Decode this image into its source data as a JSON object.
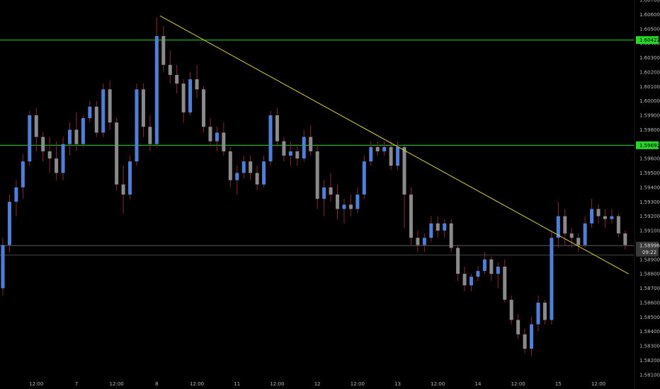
{
  "chart_data": {
    "type": "candlestick",
    "y_axis_side": "right",
    "ylim": [
      1.5805,
      1.607
    ],
    "grid": false,
    "colors": {
      "background": "#000000",
      "up": "#4f7fd9",
      "down": "#8a8a8a",
      "wick": "#8b2a2a",
      "horizontal_line": "#27d627",
      "trendline": "#d8d042",
      "price_line": "#5a5a5a",
      "axis_text": "#b7b7b7"
    },
    "y_ticks": [
      {
        "value": 1.607,
        "label": "1.60700"
      },
      {
        "value": 1.606,
        "label": "1.60600"
      },
      {
        "value": 1.605,
        "label": "1.60500"
      },
      {
        "value": 1.604,
        "label": "1.60400"
      },
      {
        "value": 1.603,
        "label": "1.60300"
      },
      {
        "value": 1.602,
        "label": "1.60200"
      },
      {
        "value": 1.601,
        "label": "1.60100"
      },
      {
        "value": 1.6,
        "label": "1.60000"
      },
      {
        "value": 1.599,
        "label": "1.59900"
      },
      {
        "value": 1.598,
        "label": "1.59800"
      },
      {
        "value": 1.597,
        "label": "1.59700"
      },
      {
        "value": 1.596,
        "label": "1.59600"
      },
      {
        "value": 1.595,
        "label": "1.59500"
      },
      {
        "value": 1.594,
        "label": "1.59400"
      },
      {
        "value": 1.593,
        "label": "1.59300"
      },
      {
        "value": 1.592,
        "label": "1.59200"
      },
      {
        "value": 1.591,
        "label": "1.59100"
      },
      {
        "value": 1.589,
        "label": "1.58900"
      },
      {
        "value": 1.588,
        "label": "1.58800"
      },
      {
        "value": 1.587,
        "label": "1.58700"
      },
      {
        "value": 1.586,
        "label": "1.58600"
      },
      {
        "value": 1.585,
        "label": "1.58500"
      },
      {
        "value": 1.584,
        "label": "1.58400"
      },
      {
        "value": 1.583,
        "label": "1.58300"
      },
      {
        "value": 1.582,
        "label": "1.58200"
      },
      {
        "value": 1.581,
        "label": "1.58100"
      }
    ],
    "x_ticks": [
      {
        "bar": 5,
        "label": "12:00"
      },
      {
        "bar": 11,
        "label": "7"
      },
      {
        "bar": 17,
        "label": "12:00"
      },
      {
        "bar": 23,
        "label": "8"
      },
      {
        "bar": 29,
        "label": "12:00"
      },
      {
        "bar": 35,
        "label": "11"
      },
      {
        "bar": 41,
        "label": "12:00"
      },
      {
        "bar": 47,
        "label": "12"
      },
      {
        "bar": 53,
        "label": "12:00"
      },
      {
        "bar": 59,
        "label": "13"
      },
      {
        "bar": 65,
        "label": "12:00"
      },
      {
        "bar": 71,
        "label": "14"
      },
      {
        "bar": 77,
        "label": "12:00"
      },
      {
        "bar": 83,
        "label": "15"
      },
      {
        "bar": 89,
        "label": "12:00"
      }
    ],
    "horizontal_lines": [
      {
        "value": 1.60422,
        "label": "1.60422"
      },
      {
        "value": 1.59692,
        "label": "1.59692"
      }
    ],
    "current_price": {
      "value": 1.58996,
      "label": "1.58996",
      "countdown": "09:22"
    },
    "secondary_line": {
      "value": 1.5893
    },
    "trendline": {
      "from": {
        "bar": 23.5,
        "price": 1.6059
      },
      "to": {
        "bar": 93.5,
        "price": 1.588
      }
    },
    "candles": [
      {
        "o": 1.587,
        "h": 1.5905,
        "l": 1.5865,
        "c": 1.59
      },
      {
        "o": 1.59,
        "h": 1.5935,
        "l": 1.5895,
        "c": 1.593
      },
      {
        "o": 1.593,
        "h": 1.5945,
        "l": 1.592,
        "c": 1.594
      },
      {
        "o": 1.594,
        "h": 1.5963,
        "l": 1.5932,
        "c": 1.5958
      },
      {
        "o": 1.5958,
        "h": 1.5993,
        "l": 1.5955,
        "c": 1.599
      },
      {
        "o": 1.599,
        "h": 1.5995,
        "l": 1.5965,
        "c": 1.5975
      },
      {
        "o": 1.5975,
        "h": 1.5978,
        "l": 1.5958,
        "c": 1.5965
      },
      {
        "o": 1.5965,
        "h": 1.5975,
        "l": 1.595,
        "c": 1.596
      },
      {
        "o": 1.596,
        "h": 1.5972,
        "l": 1.5945,
        "c": 1.595
      },
      {
        "o": 1.595,
        "h": 1.5975,
        "l": 1.5945,
        "c": 1.597
      },
      {
        "o": 1.597,
        "h": 1.5985,
        "l": 1.5962,
        "c": 1.598
      },
      {
        "o": 1.598,
        "h": 1.5992,
        "l": 1.5965,
        "c": 1.597
      },
      {
        "o": 1.597,
        "h": 1.599,
        "l": 1.5968,
        "c": 1.5988
      },
      {
        "o": 1.5988,
        "h": 1.6,
        "l": 1.5985,
        "c": 1.5996
      },
      {
        "o": 1.5996,
        "h": 1.6,
        "l": 1.5975,
        "c": 1.5978
      },
      {
        "o": 1.5978,
        "h": 1.6012,
        "l": 1.5975,
        "c": 1.6008
      },
      {
        "o": 1.6008,
        "h": 1.6014,
        "l": 1.598,
        "c": 1.5985
      },
      {
        "o": 1.5985,
        "h": 1.5988,
        "l": 1.5938,
        "c": 1.5942
      },
      {
        "o": 1.5942,
        "h": 1.5955,
        "l": 1.5922,
        "c": 1.5935
      },
      {
        "o": 1.5935,
        "h": 1.5962,
        "l": 1.5932,
        "c": 1.5958
      },
      {
        "o": 1.5958,
        "h": 1.6012,
        "l": 1.5955,
        "c": 1.6008
      },
      {
        "o": 1.6008,
        "h": 1.6012,
        "l": 1.5975,
        "c": 1.5982
      },
      {
        "o": 1.5982,
        "h": 1.599,
        "l": 1.5965,
        "c": 1.597
      },
      {
        "o": 1.597,
        "h": 1.6058,
        "l": 1.5968,
        "c": 1.6045
      },
      {
        "o": 1.6045,
        "h": 1.6052,
        "l": 1.602,
        "c": 1.6025
      },
      {
        "o": 1.6025,
        "h": 1.6035,
        "l": 1.6012,
        "c": 1.6018
      },
      {
        "o": 1.6018,
        "h": 1.6025,
        "l": 1.6005,
        "c": 1.6012
      },
      {
        "o": 1.6012,
        "h": 1.6015,
        "l": 1.5985,
        "c": 1.5992
      },
      {
        "o": 1.5992,
        "h": 1.602,
        "l": 1.599,
        "c": 1.6015
      },
      {
        "o": 1.6015,
        "h": 1.6025,
        "l": 1.6002,
        "c": 1.6008
      },
      {
        "o": 1.6008,
        "h": 1.601,
        "l": 1.5978,
        "c": 1.5982
      },
      {
        "o": 1.5982,
        "h": 1.5988,
        "l": 1.5968,
        "c": 1.5972
      },
      {
        "o": 1.5972,
        "h": 1.5982,
        "l": 1.5965,
        "c": 1.5978
      },
      {
        "o": 1.5978,
        "h": 1.5985,
        "l": 1.5962,
        "c": 1.5965
      },
      {
        "o": 1.5965,
        "h": 1.5968,
        "l": 1.594,
        "c": 1.5945
      },
      {
        "o": 1.5945,
        "h": 1.5955,
        "l": 1.5935,
        "c": 1.595
      },
      {
        "o": 1.595,
        "h": 1.5962,
        "l": 1.5946,
        "c": 1.5958
      },
      {
        "o": 1.5958,
        "h": 1.5962,
        "l": 1.5945,
        "c": 1.595
      },
      {
        "o": 1.595,
        "h": 1.5955,
        "l": 1.5938,
        "c": 1.5942
      },
      {
        "o": 1.5942,
        "h": 1.5962,
        "l": 1.594,
        "c": 1.5958
      },
      {
        "o": 1.5958,
        "h": 1.5993,
        "l": 1.5955,
        "c": 1.599
      },
      {
        "o": 1.599,
        "h": 1.5995,
        "l": 1.5968,
        "c": 1.5972
      },
      {
        "o": 1.5972,
        "h": 1.5975,
        "l": 1.5958,
        "c": 1.5962
      },
      {
        "o": 1.5962,
        "h": 1.5972,
        "l": 1.5955,
        "c": 1.5965
      },
      {
        "o": 1.5965,
        "h": 1.597,
        "l": 1.5955,
        "c": 1.596
      },
      {
        "o": 1.596,
        "h": 1.598,
        "l": 1.5958,
        "c": 1.5975
      },
      {
        "o": 1.5975,
        "h": 1.5983,
        "l": 1.5962,
        "c": 1.5965
      },
      {
        "o": 1.5965,
        "h": 1.597,
        "l": 1.5925,
        "c": 1.5932
      },
      {
        "o": 1.5932,
        "h": 1.5945,
        "l": 1.592,
        "c": 1.594
      },
      {
        "o": 1.594,
        "h": 1.595,
        "l": 1.593,
        "c": 1.5935
      },
      {
        "o": 1.5935,
        "h": 1.5942,
        "l": 1.5918,
        "c": 1.5925
      },
      {
        "o": 1.5925,
        "h": 1.5932,
        "l": 1.5915,
        "c": 1.5928
      },
      {
        "o": 1.5928,
        "h": 1.5935,
        "l": 1.592,
        "c": 1.5925
      },
      {
        "o": 1.5925,
        "h": 1.594,
        "l": 1.5922,
        "c": 1.5935
      },
      {
        "o": 1.5935,
        "h": 1.5962,
        "l": 1.5932,
        "c": 1.5958
      },
      {
        "o": 1.5958,
        "h": 1.5972,
        "l": 1.5955,
        "c": 1.5968
      },
      {
        "o": 1.5968,
        "h": 1.5972,
        "l": 1.5962,
        "c": 1.5965
      },
      {
        "o": 1.5965,
        "h": 1.5972,
        "l": 1.5962,
        "c": 1.5968
      },
      {
        "o": 1.5968,
        "h": 1.5972,
        "l": 1.5952,
        "c": 1.5955
      },
      {
        "o": 1.5955,
        "h": 1.5972,
        "l": 1.5952,
        "c": 1.5968
      },
      {
        "o": 1.5968,
        "h": 1.597,
        "l": 1.5912,
        "c": 1.5935
      },
      {
        "o": 1.5935,
        "h": 1.594,
        "l": 1.59,
        "c": 1.5905
      },
      {
        "o": 1.5905,
        "h": 1.591,
        "l": 1.5895,
        "c": 1.59
      },
      {
        "o": 1.59,
        "h": 1.5908,
        "l": 1.5895,
        "c": 1.5905
      },
      {
        "o": 1.5905,
        "h": 1.592,
        "l": 1.5902,
        "c": 1.5915
      },
      {
        "o": 1.5915,
        "h": 1.592,
        "l": 1.5905,
        "c": 1.591
      },
      {
        "o": 1.591,
        "h": 1.5918,
        "l": 1.5905,
        "c": 1.5915
      },
      {
        "o": 1.5915,
        "h": 1.5918,
        "l": 1.5895,
        "c": 1.5898
      },
      {
        "o": 1.5898,
        "h": 1.59,
        "l": 1.5875,
        "c": 1.588
      },
      {
        "o": 1.588,
        "h": 1.5885,
        "l": 1.5868,
        "c": 1.5872
      },
      {
        "o": 1.5872,
        "h": 1.588,
        "l": 1.5868,
        "c": 1.5878
      },
      {
        "o": 1.5878,
        "h": 1.5885,
        "l": 1.5875,
        "c": 1.5882
      },
      {
        "o": 1.5882,
        "h": 1.5895,
        "l": 1.588,
        "c": 1.589
      },
      {
        "o": 1.589,
        "h": 1.5892,
        "l": 1.5875,
        "c": 1.588
      },
      {
        "o": 1.588,
        "h": 1.5888,
        "l": 1.587,
        "c": 1.5885
      },
      {
        "o": 1.5885,
        "h": 1.589,
        "l": 1.586,
        "c": 1.5862
      },
      {
        "o": 1.5862,
        "h": 1.5865,
        "l": 1.5845,
        "c": 1.5848
      },
      {
        "o": 1.5848,
        "h": 1.5852,
        "l": 1.5835,
        "c": 1.5838
      },
      {
        "o": 1.5838,
        "h": 1.5842,
        "l": 1.5825,
        "c": 1.5828
      },
      {
        "o": 1.5828,
        "h": 1.585,
        "l": 1.5823,
        "c": 1.5845
      },
      {
        "o": 1.5845,
        "h": 1.5865,
        "l": 1.584,
        "c": 1.586
      },
      {
        "o": 1.586,
        "h": 1.5862,
        "l": 1.5845,
        "c": 1.5848
      },
      {
        "o": 1.5848,
        "h": 1.591,
        "l": 1.5845,
        "c": 1.5905
      },
      {
        "o": 1.5905,
        "h": 1.593,
        "l": 1.5898,
        "c": 1.592
      },
      {
        "o": 1.592,
        "h": 1.5925,
        "l": 1.59,
        "c": 1.5908
      },
      {
        "o": 1.5908,
        "h": 1.5912,
        "l": 1.5898,
        "c": 1.5905
      },
      {
        "o": 1.5905,
        "h": 1.5908,
        "l": 1.5895,
        "c": 1.59
      },
      {
        "o": 1.59,
        "h": 1.592,
        "l": 1.5898,
        "c": 1.5915
      },
      {
        "o": 1.5915,
        "h": 1.5932,
        "l": 1.5912,
        "c": 1.5925
      },
      {
        "o": 1.5925,
        "h": 1.5928,
        "l": 1.5915,
        "c": 1.592
      },
      {
        "o": 1.592,
        "h": 1.5925,
        "l": 1.5912,
        "c": 1.5918
      },
      {
        "o": 1.5918,
        "h": 1.5925,
        "l": 1.5915,
        "c": 1.592
      },
      {
        "o": 1.592,
        "h": 1.5922,
        "l": 1.5905,
        "c": 1.5908
      },
      {
        "o": 1.5908,
        "h": 1.591,
        "l": 1.5897,
        "c": 1.59
      }
    ]
  }
}
